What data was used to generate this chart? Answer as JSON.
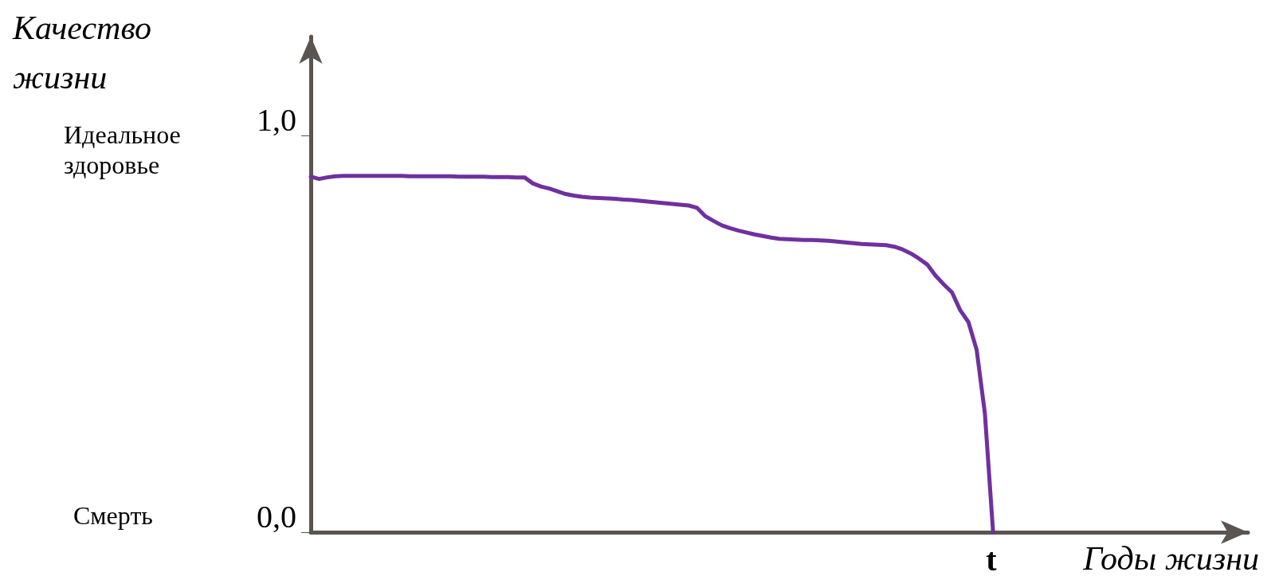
{
  "chart_data": {
    "type": "line",
    "ylabel": "Качество жизни",
    "xlabel": "Годы жизни",
    "annotations": [
      "Идеальное здоровье",
      "Смерть",
      "t"
    ],
    "categories": [
      null,
      null,
      null,
      null,
      null,
      null,
      null,
      null,
      null,
      null,
      null,
      null,
      null,
      null,
      null,
      null,
      null,
      null,
      null,
      null,
      null,
      null,
      null,
      null,
      null,
      null,
      null,
      null,
      null,
      null,
      null,
      null,
      null,
      null,
      null,
      null,
      null,
      null,
      null,
      null,
      null,
      null,
      null,
      null,
      null,
      null,
      null,
      null,
      null,
      null,
      null,
      null,
      null,
      null,
      null,
      null,
      null,
      null,
      null,
      null,
      null,
      null,
      null,
      null,
      null,
      null,
      null,
      null,
      null,
      null,
      null,
      null,
      null,
      null,
      null,
      null,
      null,
      null,
      null,
      null,
      null,
      null,
      null,
      null,
      null,
      null,
      null,
      null,
      null,
      null,
      null,
      null,
      null,
      null,
      null,
      null,
      null,
      null,
      null,
      null,
      null,
      null,
      null,
      null,
      null,
      null,
      null,
      null,
      null,
      null,
      null,
      null,
      null,
      null,
      null
    ],
    "series": [
      {
        "color": "#7030a0",
        "values": [
          0.897,
          0.891,
          0.895,
          0.898,
          0.899,
          0.899,
          0.899,
          0.899,
          0.899,
          0.899,
          0.899,
          0.899,
          0.898,
          0.898,
          0.898,
          0.898,
          0.898,
          0.898,
          0.897,
          0.897,
          0.897,
          0.897,
          0.896,
          0.896,
          0.896,
          0.895,
          0.895,
          0.88,
          0.872,
          0.867,
          0.86,
          0.853,
          0.849,
          0.846,
          0.844,
          0.843,
          0.842,
          0.841,
          0.839,
          0.838,
          0.836,
          0.834,
          0.832,
          0.83,
          0.828,
          0.826,
          0.824,
          0.818,
          0.797,
          0.785,
          0.774,
          0.767,
          0.761,
          0.756,
          0.751,
          0.747,
          0.743,
          0.74,
          0.739,
          0.738,
          0.737,
          0.737,
          0.736,
          0.735,
          0.733,
          0.731,
          0.729,
          0.727,
          0.726,
          0.725,
          0.724,
          0.72,
          0.713,
          0.703,
          0.69,
          0.675,
          0.647,
          0.625,
          0.605,
          0.56,
          0.53,
          0.46,
          0.3,
          0,
          null,
          null,
          null,
          null,
          null,
          null,
          null,
          null,
          null,
          null,
          null,
          null,
          null,
          null,
          null,
          null,
          null,
          null,
          null,
          null,
          null,
          null,
          null,
          null,
          null,
          null,
          null,
          null,
          null,
          null,
          null
        ]
      }
    ],
    "ylim": [
      0,
      1.25
    ],
    "yticks": [
      {
        "value": 0,
        "label": "0,0"
      },
      {
        "value": 1,
        "label": "1,0"
      }
    ],
    "tick_labels": "y",
    "grid": false,
    "marker": "none",
    "line_style": "solid"
  }
}
